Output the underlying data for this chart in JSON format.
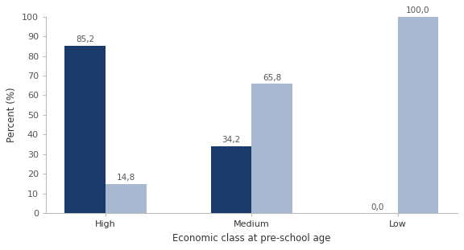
{
  "categories": [
    "High",
    "Medium",
    "Low"
  ],
  "series1_values": [
    85.2,
    34.2,
    0.0
  ],
  "series2_values": [
    14.8,
    65.8,
    100.0
  ],
  "series1_labels": [
    "85,2",
    "34,2",
    "0,0"
  ],
  "series2_labels": [
    "14,8",
    "65,8",
    "100,0"
  ],
  "color_dark": "#1a3a6b",
  "color_light": "#a8b8d0",
  "ylabel": "Percent (%)",
  "xlabel": "Economic class at pre-school age",
  "ylim": [
    0,
    100
  ],
  "yticks": [
    0,
    10,
    20,
    30,
    40,
    50,
    60,
    70,
    80,
    90,
    100
  ],
  "bar_width": 0.28,
  "label_fontsize": 7.5,
  "axis_fontsize": 8.5,
  "tick_fontsize": 8
}
